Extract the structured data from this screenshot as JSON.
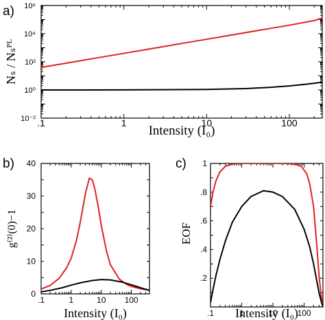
{
  "chart_data": [
    {
      "panel_label": "a)",
      "type": "line",
      "xscale": "log",
      "yscale": "log",
      "xlim": [
        0.1,
        250
      ],
      "ylim": [
        0.01,
        1000000
      ],
      "xlabel": "Intensity (I₀)",
      "ylabel": "Nₛ / Nₛᴾᴸ",
      "x_ticks": [
        0.1,
        1,
        10,
        100
      ],
      "x_tick_labels": [
        ".1",
        "1",
        "10",
        "100"
      ],
      "y_ticks": [
        0.01,
        1,
        100,
        10000,
        1000000
      ],
      "y_tick_labels": [
        "10⁻²",
        "10⁰",
        "10²",
        "10⁴",
        "10⁶"
      ],
      "series": [
        {
          "color": "#e02020",
          "x": [
            0.1,
            0.2,
            0.5,
            1,
            2,
            5,
            10,
            20,
            50,
            100,
            150,
            200,
            250
          ],
          "y": [
            40,
            80,
            200,
            400,
            800,
            2000,
            4000,
            8000,
            20000,
            40000,
            62000,
            85000,
            130000
          ]
        },
        {
          "color": "#000000",
          "x": [
            0.1,
            1,
            10,
            30,
            60,
            100,
            150,
            200,
            250
          ],
          "y": [
            1.0,
            1.01,
            1.08,
            1.25,
            1.55,
            1.95,
            2.45,
            3.0,
            3.6
          ]
        }
      ]
    },
    {
      "panel_label": "b)",
      "type": "line",
      "xscale": "log",
      "xlim": [
        0.1,
        400
      ],
      "ylim": [
        0,
        40
      ],
      "xlabel": "Intensity (I₀)",
      "ylabel": "g⁽²⁾(0)−1",
      "x_ticks": [
        0.1,
        1,
        10,
        100
      ],
      "x_tick_labels": [
        ".1",
        "1",
        "10",
        "100"
      ],
      "y_ticks": [
        0,
        10,
        20,
        30,
        40
      ],
      "y_tick_labels": [
        "0",
        "10",
        "20",
        "30",
        "40"
      ],
      "series": [
        {
          "color": "#e02020",
          "x": [
            0.1,
            0.2,
            0.4,
            0.7,
            1,
            1.5,
            2,
            3,
            4,
            5,
            6,
            8,
            10,
            15,
            20,
            40,
            70,
            100,
            200,
            400
          ],
          "y": [
            1.5,
            2.6,
            4.8,
            8.0,
            11.0,
            16.5,
            22.0,
            31.0,
            35.5,
            35.0,
            32.5,
            26.5,
            21.0,
            13.0,
            9.0,
            4.5,
            2.9,
            2.3,
            1.6,
            1.1
          ]
        },
        {
          "color": "#000000",
          "x": [
            0.1,
            0.2,
            0.5,
            1,
            2,
            5,
            10,
            20,
            50,
            100,
            200,
            400
          ],
          "y": [
            0.6,
            1.1,
            1.9,
            2.7,
            3.4,
            4.1,
            4.4,
            4.3,
            3.6,
            2.8,
            1.9,
            1.1
          ]
        }
      ]
    },
    {
      "panel_label": "c)",
      "type": "line",
      "xscale": "log",
      "xlim": [
        0.1,
        400
      ],
      "ylim": [
        0,
        1
      ],
      "xlabel": "Intensity (I₀)",
      "ylabel": "EOF",
      "x_ticks": [
        0.1,
        1,
        10,
        100
      ],
      "x_tick_labels": [
        ".1",
        "1",
        "10",
        "100"
      ],
      "y_ticks": [
        0.2,
        0.4,
        0.6,
        0.8,
        1.0
      ],
      "y_tick_labels": [
        ".2",
        ".4",
        ".6",
        ".8",
        "1"
      ],
      "series": [
        {
          "color": "#e02020",
          "x": [
            0.1,
            0.12,
            0.15,
            0.2,
            0.3,
            0.5,
            0.7,
            1,
            2,
            5,
            10,
            20,
            50,
            80,
            120,
            150,
            200,
            250,
            300,
            350,
            400
          ],
          "y": [
            0.7,
            0.8,
            0.88,
            0.94,
            0.98,
            0.995,
            1.0,
            1.0,
            1.0,
            1.0,
            1.0,
            1.0,
            0.995,
            0.98,
            0.93,
            0.86,
            0.7,
            0.45,
            0.22,
            0.08,
            0.0
          ]
        },
        {
          "color": "#000000",
          "x": [
            0.1,
            0.12,
            0.15,
            0.2,
            0.3,
            0.5,
            1,
            2,
            5,
            10,
            20,
            50,
            100,
            150,
            200,
            250,
            300,
            350,
            400
          ],
          "y": [
            0.03,
            0.12,
            0.22,
            0.33,
            0.46,
            0.59,
            0.7,
            0.77,
            0.81,
            0.8,
            0.77,
            0.68,
            0.54,
            0.42,
            0.3,
            0.19,
            0.1,
            0.04,
            0.0
          ]
        }
      ]
    }
  ]
}
